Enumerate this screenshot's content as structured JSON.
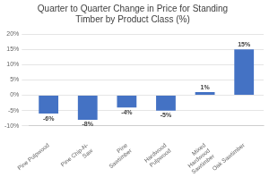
{
  "chart_data": {
    "type": "bar",
    "title": "Quarter to Quarter Change in Price for Standing\nTimber by Product Class (%)",
    "categories": [
      "Pine Pulpwood",
      "Pine Chip-N-\nSaw",
      "Pine\nSawtimber",
      "Hardwood\nPulpwood",
      "Mixed\nHardwood\nSawtimber",
      "Oak Sawtimber"
    ],
    "values": [
      -6,
      -8,
      -4,
      -5,
      1,
      15
    ],
    "value_labels": [
      "-6%",
      "-8%",
      "-4%",
      "-5%",
      "1%",
      "15%"
    ],
    "data_labels": true,
    "color": "#4472C4",
    "ylim": [
      -10,
      20
    ],
    "yticks": [
      {
        "value": -10,
        "label": "-10%"
      },
      {
        "value": -5,
        "label": "-5%"
      },
      {
        "value": 0,
        "label": "0%"
      },
      {
        "value": 5,
        "label": "5%"
      },
      {
        "value": 10,
        "label": "10%"
      },
      {
        "value": 15,
        "label": "15%"
      },
      {
        "value": 20,
        "label": "20%"
      }
    ],
    "grid": true
  }
}
